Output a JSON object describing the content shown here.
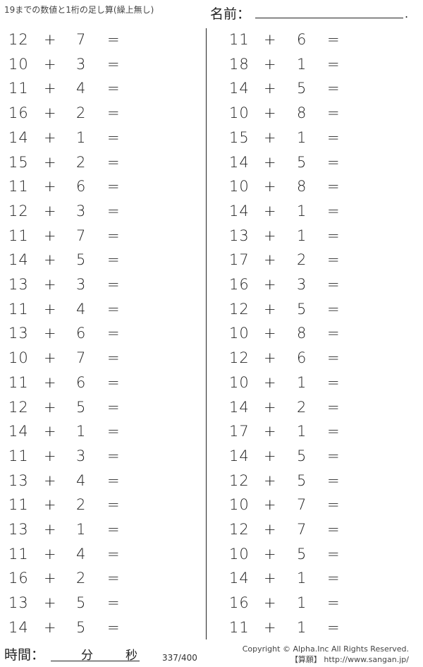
{
  "header": {
    "title": "19までの数値と1桁の足し算(繰上無し)",
    "name_label": "名前：",
    "name_end": "."
  },
  "problems": {
    "left": [
      [
        "12",
        "+",
        "7",
        "="
      ],
      [
        "10",
        "+",
        "3",
        "="
      ],
      [
        "11",
        "+",
        "4",
        "="
      ],
      [
        "16",
        "+",
        "2",
        "="
      ],
      [
        "14",
        "+",
        "1",
        "="
      ],
      [
        "15",
        "+",
        "2",
        "="
      ],
      [
        "11",
        "+",
        "6",
        "="
      ],
      [
        "12",
        "+",
        "3",
        "="
      ],
      [
        "11",
        "+",
        "7",
        "="
      ],
      [
        "14",
        "+",
        "5",
        "="
      ],
      [
        "13",
        "+",
        "3",
        "="
      ],
      [
        "11",
        "+",
        "4",
        "="
      ],
      [
        "13",
        "+",
        "6",
        "="
      ],
      [
        "10",
        "+",
        "7",
        "="
      ],
      [
        "11",
        "+",
        "6",
        "="
      ],
      [
        "12",
        "+",
        "5",
        "="
      ],
      [
        "14",
        "+",
        "1",
        "="
      ],
      [
        "11",
        "+",
        "3",
        "="
      ],
      [
        "13",
        "+",
        "4",
        "="
      ],
      [
        "11",
        "+",
        "2",
        "="
      ],
      [
        "13",
        "+",
        "1",
        "="
      ],
      [
        "11",
        "+",
        "4",
        "="
      ],
      [
        "16",
        "+",
        "2",
        "="
      ],
      [
        "13",
        "+",
        "5",
        "="
      ],
      [
        "14",
        "+",
        "5",
        "="
      ]
    ],
    "right": [
      [
        "11",
        "+",
        "6",
        "="
      ],
      [
        "18",
        "+",
        "1",
        "="
      ],
      [
        "14",
        "+",
        "5",
        "="
      ],
      [
        "10",
        "+",
        "8",
        "="
      ],
      [
        "15",
        "+",
        "1",
        "="
      ],
      [
        "14",
        "+",
        "5",
        "="
      ],
      [
        "10",
        "+",
        "8",
        "="
      ],
      [
        "14",
        "+",
        "1",
        "="
      ],
      [
        "13",
        "+",
        "1",
        "="
      ],
      [
        "17",
        "+",
        "2",
        "="
      ],
      [
        "16",
        "+",
        "3",
        "="
      ],
      [
        "12",
        "+",
        "5",
        "="
      ],
      [
        "10",
        "+",
        "8",
        "="
      ],
      [
        "12",
        "+",
        "6",
        "="
      ],
      [
        "10",
        "+",
        "1",
        "="
      ],
      [
        "14",
        "+",
        "2",
        "="
      ],
      [
        "17",
        "+",
        "1",
        "="
      ],
      [
        "14",
        "+",
        "5",
        "="
      ],
      [
        "12",
        "+",
        "5",
        "="
      ],
      [
        "10",
        "+",
        "7",
        "="
      ],
      [
        "12",
        "+",
        "7",
        "="
      ],
      [
        "10",
        "+",
        "5",
        "="
      ],
      [
        "14",
        "+",
        "1",
        "="
      ],
      [
        "16",
        "+",
        "1",
        "="
      ],
      [
        "11",
        "+",
        "1",
        "="
      ]
    ]
  },
  "footer": {
    "time_label": "時間：",
    "minutes": "分",
    "seconds": "秒",
    "page": "337/400",
    "copyright": "Copyright © Alpha.Inc All Rights Reserved.",
    "site": "【算願】 http://www.sangan.jp/"
  }
}
